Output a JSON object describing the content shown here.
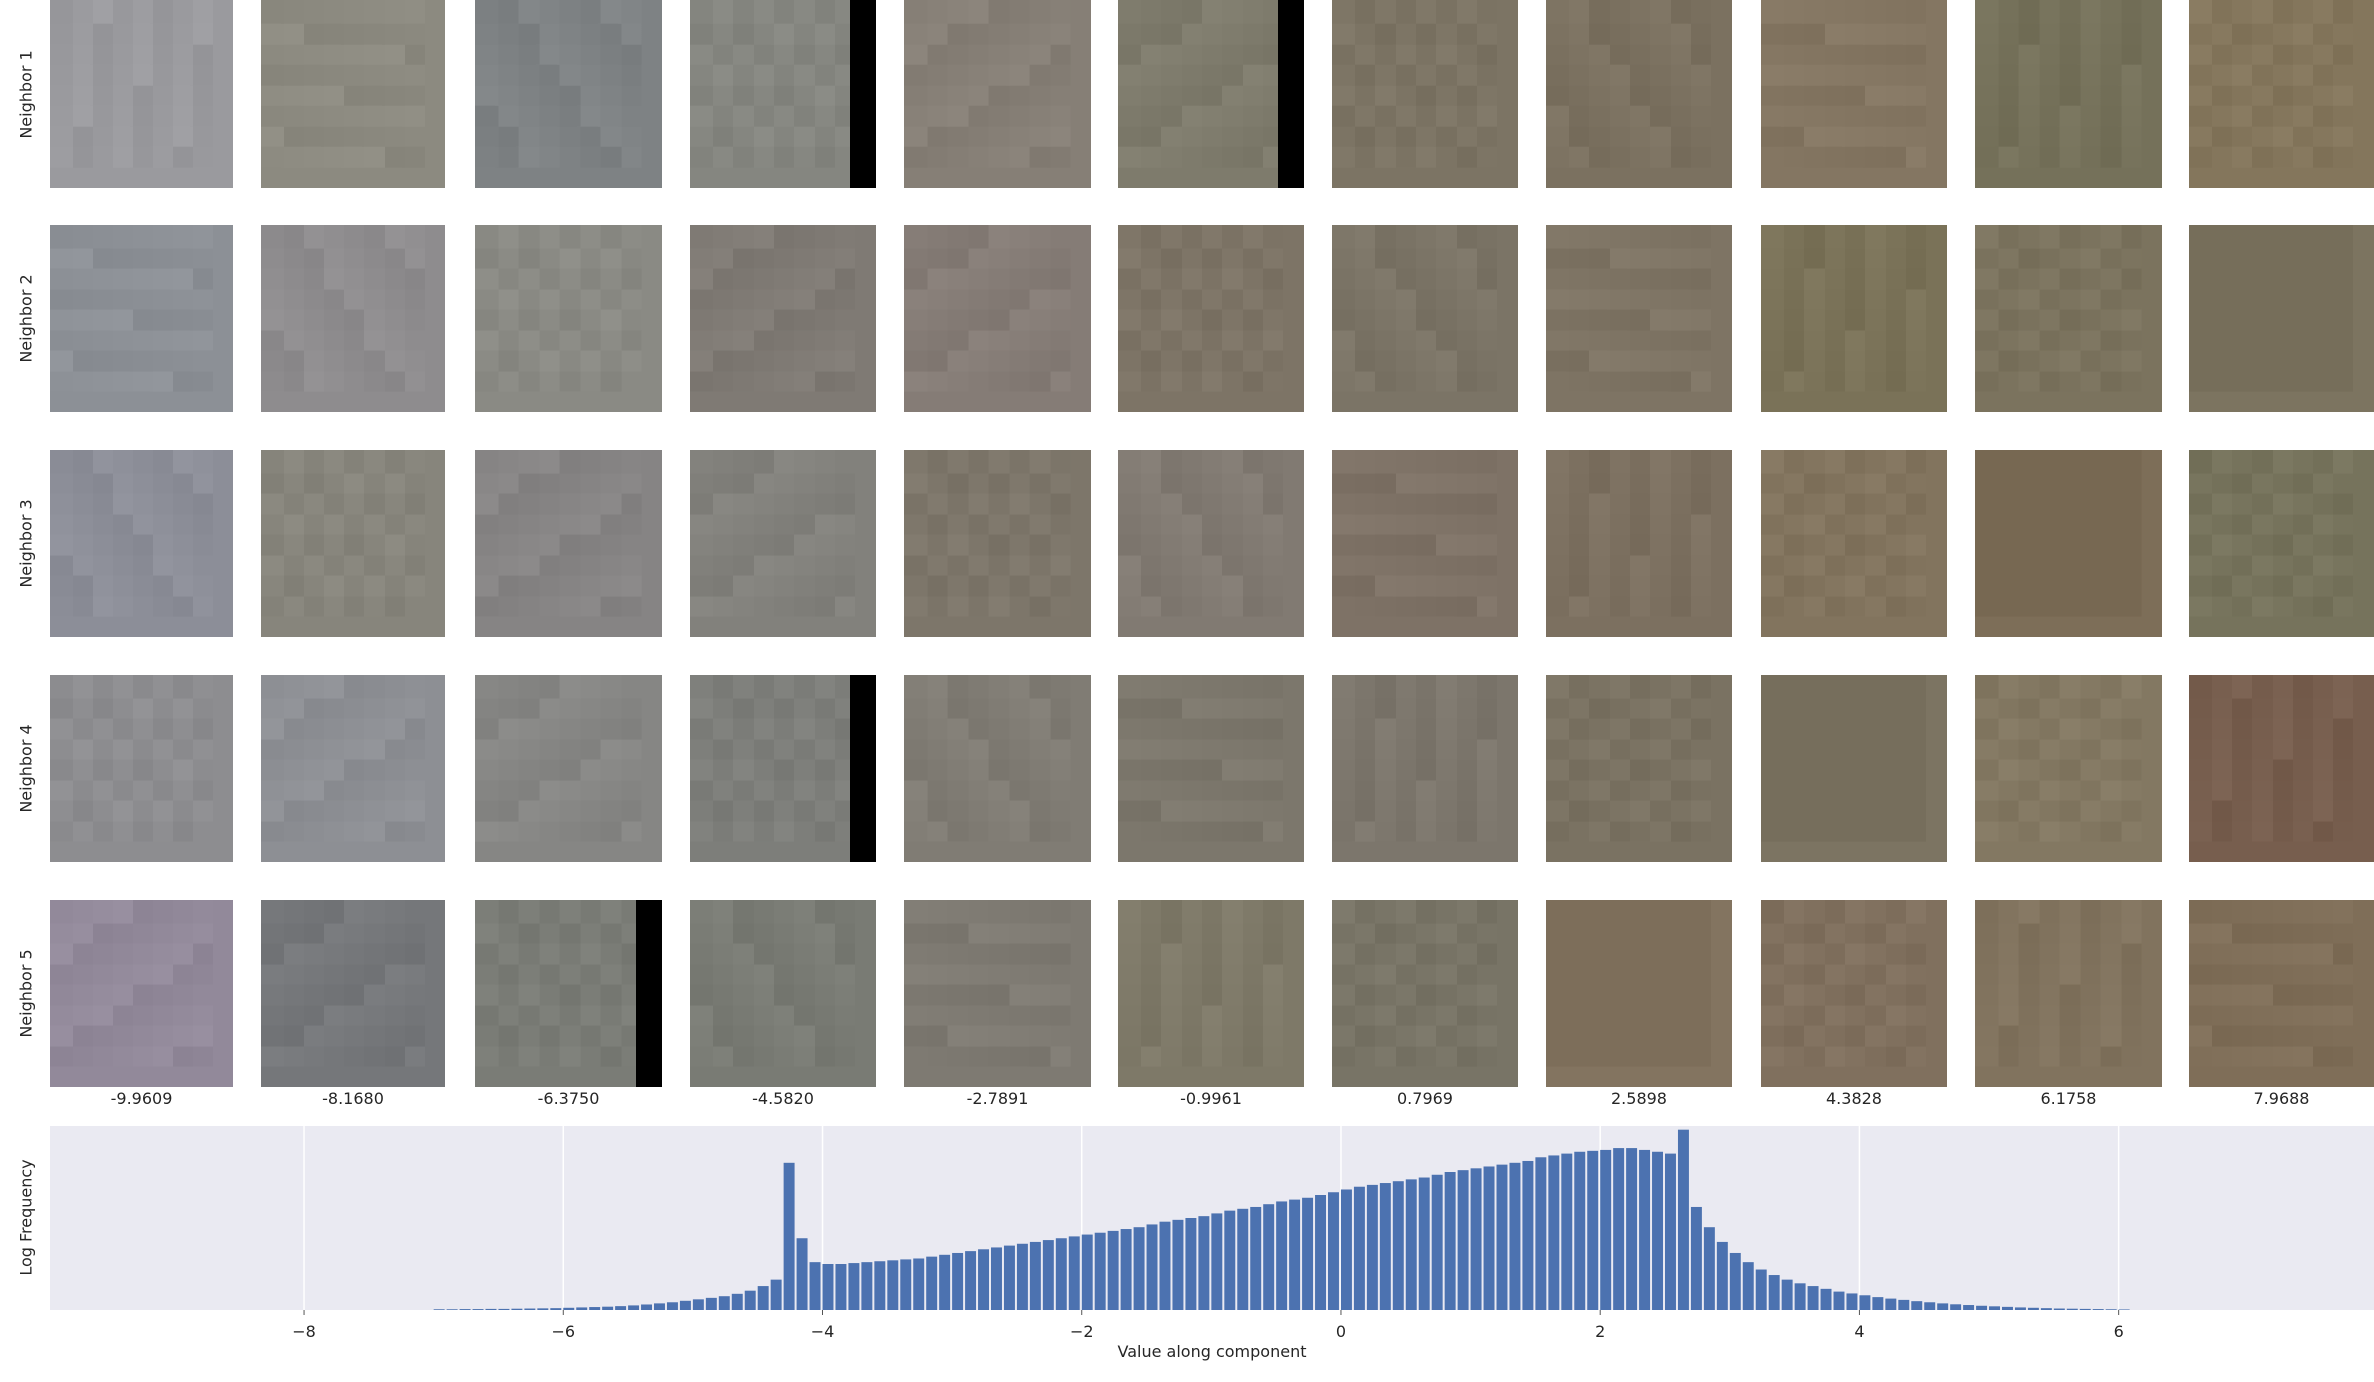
{
  "grid": {
    "row_labels": [
      "Neighbor 1",
      "Neighbor 2",
      "Neighbor 3",
      "Neighbor 4",
      "Neighbor 5"
    ],
    "column_values": [
      "-9.9609",
      "-8.1680",
      "-6.3750",
      "-4.5820",
      "-2.7891",
      "-0.9961",
      "0.7969",
      "2.5898",
      "4.3828",
      "6.1758",
      "7.9688"
    ],
    "patch_colors": [
      [
        "#9a9a9e",
        "#8c8a80",
        "#7e8284",
        "#858680",
        "#867f76",
        "#7e7b6c",
        "#7c7464",
        "#7b7160",
        "#847662",
        "#75715a",
        "#84765c"
      ],
      [
        "#8c9096",
        "#8e8c8e",
        "#8a8a84",
        "#7f7a74",
        "#857c76",
        "#7d7466",
        "#7b7466",
        "#7e7464",
        "#7a7258",
        "#7b735e",
        "#7c7460"
      ],
      [
        "#8c8e98",
        "#87857c",
        "#868484",
        "#82817c",
        "#7d766a",
        "#817a72",
        "#7e7266",
        "#7c7060",
        "#82745e",
        "#7d6e58",
        "#76735c"
      ],
      [
        "#8d8d90",
        "#8d8f94",
        "#868684",
        "#7d7e7a",
        "#807c74",
        "#7c776c",
        "#7c766c",
        "#7a7262",
        "#7c7462",
        "#837862",
        "#775e4e"
      ],
      [
        "#92899a",
        "#75777a",
        "#7a7c76",
        "#797b74",
        "#7e7a72",
        "#7e7968",
        "#787466",
        "#837460",
        "#80705e",
        "#81735e",
        "#7f6e58"
      ]
    ],
    "black_bar_cells": [
      [
        0,
        3
      ],
      [
        0,
        5
      ],
      [
        3,
        3
      ],
      [
        4,
        2
      ]
    ]
  },
  "histogram": {
    "xlabel": "Value along component",
    "ylabel": "Log Frequency"
  },
  "chart_data": {
    "type": "bar",
    "title": "",
    "xlabel": "Value along component",
    "ylabel": "Log Frequency",
    "xlim": [
      -9.96,
      7.97
    ],
    "ylim": [
      0,
      1
    ],
    "x_ticks": [
      "−8",
      "−6",
      "−4",
      "−2",
      "0",
      "2",
      "4",
      "6"
    ],
    "x_tick_values": [
      -8,
      -6,
      -4,
      -2,
      0,
      2,
      4,
      6
    ],
    "grid": "on",
    "bin_width": 0.1,
    "bins": [
      {
        "x": -7.0,
        "y": 0.004
      },
      {
        "x": -6.9,
        "y": 0.004
      },
      {
        "x": -6.8,
        "y": 0.005
      },
      {
        "x": -6.7,
        "y": 0.005
      },
      {
        "x": -6.6,
        "y": 0.006
      },
      {
        "x": -6.5,
        "y": 0.006
      },
      {
        "x": -6.4,
        "y": 0.007
      },
      {
        "x": -6.3,
        "y": 0.008
      },
      {
        "x": -6.2,
        "y": 0.009
      },
      {
        "x": -6.1,
        "y": 0.01
      },
      {
        "x": -6.0,
        "y": 0.012
      },
      {
        "x": -5.9,
        "y": 0.014
      },
      {
        "x": -5.8,
        "y": 0.016
      },
      {
        "x": -5.7,
        "y": 0.018
      },
      {
        "x": -5.6,
        "y": 0.021
      },
      {
        "x": -5.5,
        "y": 0.025
      },
      {
        "x": -5.4,
        "y": 0.03
      },
      {
        "x": -5.3,
        "y": 0.036
      },
      {
        "x": -5.2,
        "y": 0.042
      },
      {
        "x": -5.1,
        "y": 0.05
      },
      {
        "x": -5.0,
        "y": 0.058
      },
      {
        "x": -4.9,
        "y": 0.066
      },
      {
        "x": -4.8,
        "y": 0.075
      },
      {
        "x": -4.7,
        "y": 0.088
      },
      {
        "x": -4.6,
        "y": 0.105
      },
      {
        "x": -4.5,
        "y": 0.13
      },
      {
        "x": -4.4,
        "y": 0.165
      },
      {
        "x": -4.3,
        "y": 0.8
      },
      {
        "x": -4.2,
        "y": 0.39
      },
      {
        "x": -4.1,
        "y": 0.26
      },
      {
        "x": -4.0,
        "y": 0.25
      },
      {
        "x": -3.9,
        "y": 0.25
      },
      {
        "x": -3.8,
        "y": 0.255
      },
      {
        "x": -3.7,
        "y": 0.26
      },
      {
        "x": -3.6,
        "y": 0.265
      },
      {
        "x": -3.5,
        "y": 0.27
      },
      {
        "x": -3.4,
        "y": 0.275
      },
      {
        "x": -3.3,
        "y": 0.28
      },
      {
        "x": -3.2,
        "y": 0.29
      },
      {
        "x": -3.1,
        "y": 0.3
      },
      {
        "x": -3.0,
        "y": 0.31
      },
      {
        "x": -2.9,
        "y": 0.32
      },
      {
        "x": -2.8,
        "y": 0.33
      },
      {
        "x": -2.7,
        "y": 0.34
      },
      {
        "x": -2.6,
        "y": 0.35
      },
      {
        "x": -2.5,
        "y": 0.36
      },
      {
        "x": -2.4,
        "y": 0.37
      },
      {
        "x": -2.3,
        "y": 0.38
      },
      {
        "x": -2.2,
        "y": 0.39
      },
      {
        "x": -2.1,
        "y": 0.4
      },
      {
        "x": -2.0,
        "y": 0.41
      },
      {
        "x": -1.9,
        "y": 0.42
      },
      {
        "x": -1.8,
        "y": 0.43
      },
      {
        "x": -1.7,
        "y": 0.44
      },
      {
        "x": -1.6,
        "y": 0.45
      },
      {
        "x": -1.5,
        "y": 0.465
      },
      {
        "x": -1.4,
        "y": 0.48
      },
      {
        "x": -1.3,
        "y": 0.49
      },
      {
        "x": -1.2,
        "y": 0.5
      },
      {
        "x": -1.1,
        "y": 0.51
      },
      {
        "x": -1.0,
        "y": 0.525
      },
      {
        "x": -0.9,
        "y": 0.54
      },
      {
        "x": -0.8,
        "y": 0.55
      },
      {
        "x": -0.7,
        "y": 0.56
      },
      {
        "x": -0.6,
        "y": 0.575
      },
      {
        "x": -0.5,
        "y": 0.59
      },
      {
        "x": -0.4,
        "y": 0.6
      },
      {
        "x": -0.3,
        "y": 0.61
      },
      {
        "x": -0.2,
        "y": 0.625
      },
      {
        "x": -0.1,
        "y": 0.64
      },
      {
        "x": 0.0,
        "y": 0.655
      },
      {
        "x": 0.1,
        "y": 0.67
      },
      {
        "x": 0.2,
        "y": 0.68
      },
      {
        "x": 0.3,
        "y": 0.69
      },
      {
        "x": 0.4,
        "y": 0.7
      },
      {
        "x": 0.5,
        "y": 0.71
      },
      {
        "x": 0.6,
        "y": 0.72
      },
      {
        "x": 0.7,
        "y": 0.735
      },
      {
        "x": 0.8,
        "y": 0.75
      },
      {
        "x": 0.9,
        "y": 0.76
      },
      {
        "x": 1.0,
        "y": 0.77
      },
      {
        "x": 1.1,
        "y": 0.78
      },
      {
        "x": 1.2,
        "y": 0.79
      },
      {
        "x": 1.3,
        "y": 0.8
      },
      {
        "x": 1.4,
        "y": 0.81
      },
      {
        "x": 1.5,
        "y": 0.83
      },
      {
        "x": 1.6,
        "y": 0.84
      },
      {
        "x": 1.7,
        "y": 0.85
      },
      {
        "x": 1.8,
        "y": 0.86
      },
      {
        "x": 1.9,
        "y": 0.865
      },
      {
        "x": 2.0,
        "y": 0.87
      },
      {
        "x": 2.1,
        "y": 0.88
      },
      {
        "x": 2.2,
        "y": 0.88
      },
      {
        "x": 2.3,
        "y": 0.87
      },
      {
        "x": 2.4,
        "y": 0.86
      },
      {
        "x": 2.5,
        "y": 0.85
      },
      {
        "x": 2.6,
        "y": 0.98
      },
      {
        "x": 2.7,
        "y": 0.56
      },
      {
        "x": 2.8,
        "y": 0.45
      },
      {
        "x": 2.9,
        "y": 0.37
      },
      {
        "x": 3.0,
        "y": 0.31
      },
      {
        "x": 3.1,
        "y": 0.26
      },
      {
        "x": 3.2,
        "y": 0.22
      },
      {
        "x": 3.3,
        "y": 0.19
      },
      {
        "x": 3.4,
        "y": 0.165
      },
      {
        "x": 3.5,
        "y": 0.145
      },
      {
        "x": 3.6,
        "y": 0.13
      },
      {
        "x": 3.7,
        "y": 0.115
      },
      {
        "x": 3.8,
        "y": 0.1
      },
      {
        "x": 3.9,
        "y": 0.09
      },
      {
        "x": 4.0,
        "y": 0.08
      },
      {
        "x": 4.1,
        "y": 0.07
      },
      {
        "x": 4.2,
        "y": 0.062
      },
      {
        "x": 4.3,
        "y": 0.055
      },
      {
        "x": 4.4,
        "y": 0.048
      },
      {
        "x": 4.5,
        "y": 0.042
      },
      {
        "x": 4.6,
        "y": 0.036
      },
      {
        "x": 4.7,
        "y": 0.031
      },
      {
        "x": 4.8,
        "y": 0.027
      },
      {
        "x": 4.9,
        "y": 0.023
      },
      {
        "x": 5.0,
        "y": 0.02
      },
      {
        "x": 5.1,
        "y": 0.017
      },
      {
        "x": 5.2,
        "y": 0.014
      },
      {
        "x": 5.3,
        "y": 0.012
      },
      {
        "x": 5.4,
        "y": 0.01
      },
      {
        "x": 5.5,
        "y": 0.008
      },
      {
        "x": 5.6,
        "y": 0.007
      },
      {
        "x": 5.7,
        "y": 0.006
      },
      {
        "x": 5.8,
        "y": 0.005
      },
      {
        "x": 5.9,
        "y": 0.004
      },
      {
        "x": 6.0,
        "y": 0.003
      }
    ],
    "colors": {
      "bar": "#4c72b0",
      "background": "#eaeaf2",
      "grid": "#ffffff"
    }
  }
}
